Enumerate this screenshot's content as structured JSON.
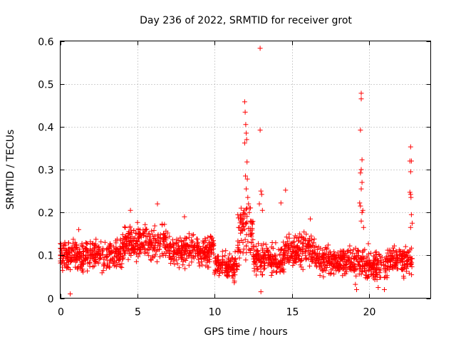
{
  "chart_data": {
    "type": "scatter",
    "title": "Day 236 of 2022, SRMTID for receiver grot",
    "xlabel": "GPS time / hours",
    "ylabel": "SRMTID / TECUs",
    "xlim": [
      0,
      24
    ],
    "ylim": [
      0,
      0.6
    ],
    "xticks": [
      0,
      5,
      10,
      15,
      20
    ],
    "yticks": [
      0,
      0.1,
      0.2,
      0.3,
      0.4,
      0.5,
      0.6
    ],
    "grid": true,
    "marker": "+",
    "color": "#ff0000",
    "note": "Dense red '+' markers, roughly 2000 samples between 0 and 22.8 hours; baseline values ~0.04-0.15 TECU with spikes near 12 h (up to ~0.46), 13 h (0.58), 19.5 h (~0.48) and 22.7 h (~0.35).",
    "segments": [
      {
        "x": [
          0.0,
          4.0
        ],
        "y": [
          0.05,
          0.15
        ]
      },
      {
        "x": [
          4.0,
          7.0
        ],
        "y": [
          0.07,
          0.19
        ]
      },
      {
        "x": [
          7.0,
          10.0
        ],
        "y": [
          0.06,
          0.16
        ]
      },
      {
        "x": [
          10.0,
          11.5
        ],
        "y": [
          0.03,
          0.12
        ]
      },
      {
        "x": [
          11.5,
          12.5
        ],
        "y": [
          0.05,
          0.26
        ]
      },
      {
        "x": [
          12.5,
          14.5
        ],
        "y": [
          0.04,
          0.14
        ]
      },
      {
        "x": [
          14.5,
          16.5
        ],
        "y": [
          0.06,
          0.17
        ]
      },
      {
        "x": [
          16.5,
          19.0
        ],
        "y": [
          0.04,
          0.13
        ]
      },
      {
        "x": [
          19.0,
          20.0
        ],
        "y": [
          0.02,
          0.14
        ]
      },
      {
        "x": [
          20.0,
          21.2
        ],
        "y": [
          0.03,
          0.12
        ]
      },
      {
        "x": [
          21.2,
          22.8
        ],
        "y": [
          0.04,
          0.14
        ]
      }
    ],
    "points": [
      [
        0.3,
        0.13
      ],
      [
        0.65,
        0.01
      ],
      [
        1.2,
        0.16
      ],
      [
        4.55,
        0.205
      ],
      [
        6.3,
        0.22
      ],
      [
        8.05,
        0.19
      ],
      [
        11.95,
        0.458
      ],
      [
        11.98,
        0.434
      ],
      [
        12.02,
        0.405
      ],
      [
        12.05,
        0.385
      ],
      [
        12.08,
        0.37
      ],
      [
        11.95,
        0.362
      ],
      [
        12.1,
        0.318
      ],
      [
        12.0,
        0.285
      ],
      [
        12.12,
        0.278
      ],
      [
        12.05,
        0.255
      ],
      [
        12.15,
        0.235
      ],
      [
        12.2,
        0.22
      ],
      [
        11.9,
        0.205
      ],
      [
        12.25,
        0.2
      ],
      [
        12.95,
        0.583
      ],
      [
        12.95,
        0.392
      ],
      [
        13.0,
        0.25
      ],
      [
        13.05,
        0.242
      ],
      [
        12.9,
        0.22
      ],
      [
        13.1,
        0.205
      ],
      [
        14.3,
        0.222
      ],
      [
        14.6,
        0.252
      ],
      [
        16.2,
        0.185
      ],
      [
        19.5,
        0.478
      ],
      [
        19.5,
        0.465
      ],
      [
        19.45,
        0.392
      ],
      [
        19.55,
        0.323
      ],
      [
        19.5,
        0.3
      ],
      [
        19.45,
        0.292
      ],
      [
        19.55,
        0.27
      ],
      [
        19.5,
        0.255
      ],
      [
        19.4,
        0.222
      ],
      [
        19.45,
        0.215
      ],
      [
        19.6,
        0.205
      ],
      [
        19.55,
        0.2
      ],
      [
        19.5,
        0.18
      ],
      [
        19.65,
        0.165
      ],
      [
        22.7,
        0.353
      ],
      [
        22.75,
        0.32
      ],
      [
        22.65,
        0.32
      ],
      [
        22.7,
        0.295
      ],
      [
        22.65,
        0.247
      ],
      [
        22.7,
        0.242
      ],
      [
        22.72,
        0.235
      ],
      [
        22.75,
        0.195
      ],
      [
        22.8,
        0.175
      ],
      [
        22.7,
        0.165
      ],
      [
        21.0,
        0.02
      ],
      [
        20.6,
        0.025
      ],
      [
        13.0,
        0.015
      ],
      [
        19.2,
        0.02
      ]
    ]
  }
}
